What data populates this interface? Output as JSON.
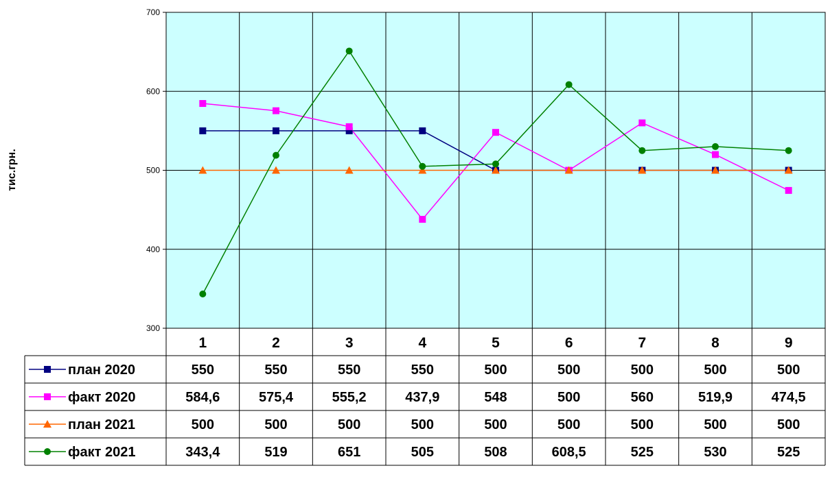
{
  "chart_data": {
    "type": "line",
    "ylabel": "тис.грн.",
    "ylim": [
      300,
      700
    ],
    "yticks": [
      300,
      400,
      500,
      600,
      700
    ],
    "grid": true,
    "legend": "data-table-left",
    "categories": [
      "1",
      "2",
      "3",
      "4",
      "5",
      "6",
      "7",
      "8",
      "9"
    ],
    "series": [
      {
        "name": "план 2020",
        "values": [
          550,
          550,
          550,
          550,
          500,
          500,
          500,
          500,
          500
        ],
        "labels": [
          "550",
          "550",
          "550",
          "550",
          "500",
          "500",
          "500",
          "500",
          "500"
        ],
        "color": "#000080",
        "marker": "square"
      },
      {
        "name": "факт 2020",
        "values": [
          584.6,
          575.4,
          555.2,
          437.9,
          548,
          500,
          560,
          519.9,
          474.5
        ],
        "labels": [
          "584,6",
          "575,4",
          "555,2",
          "437,9",
          "548",
          "500",
          "560",
          "519,9",
          "474,5"
        ],
        "color": "#ff00ff",
        "marker": "square"
      },
      {
        "name": "план 2021",
        "values": [
          500,
          500,
          500,
          500,
          500,
          500,
          500,
          500,
          500
        ],
        "labels": [
          "500",
          "500",
          "500",
          "500",
          "500",
          "500",
          "500",
          "500",
          "500"
        ],
        "color": "#ff6600",
        "marker": "triangle"
      },
      {
        "name": "факт 2021",
        "values": [
          343.4,
          519,
          651,
          505,
          508,
          608.5,
          525,
          530,
          525
        ],
        "labels": [
          "343,4",
          "519",
          "651",
          "505",
          "508",
          "608,5",
          "525",
          "530",
          "525"
        ],
        "color": "#008000",
        "marker": "circle"
      }
    ],
    "plot_background": "#ccffff"
  }
}
